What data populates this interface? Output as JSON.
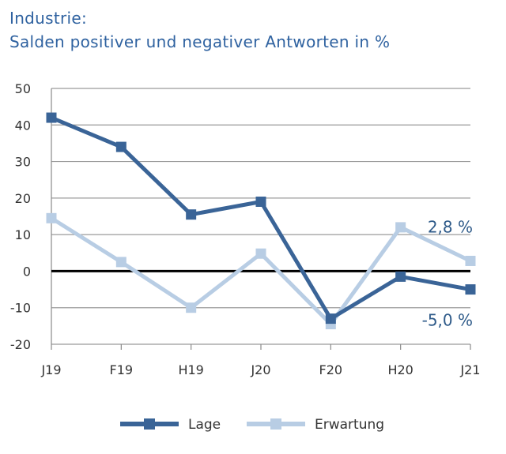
{
  "title": {
    "line1": "Industrie:",
    "line2": "Salden positiver und negativer Antworten in %"
  },
  "chart_data": {
    "type": "line",
    "categories": [
      "J19",
      "F19",
      "H19",
      "J20",
      "F20",
      "H20",
      "J21"
    ],
    "ylim": [
      -20,
      50
    ],
    "yticks": [
      50,
      40,
      30,
      20,
      10,
      0,
      -10,
      -20
    ],
    "grid": true,
    "zero_line": true,
    "legend_position": "bottom",
    "series": [
      {
        "name": "Lage",
        "color": "#3a6497",
        "values": [
          42,
          34,
          15.5,
          19,
          -13,
          -1.5,
          -5.0
        ]
      },
      {
        "name": "Erwartung",
        "color": "#b8cde4",
        "values": [
          14.5,
          2.5,
          -10,
          4.8,
          -14.5,
          12,
          2.8
        ]
      }
    ],
    "annotations": [
      {
        "text": "2,8 %",
        "series": "Erwartung"
      },
      {
        "text": "-5,0 %",
        "series": "Lage"
      }
    ]
  }
}
